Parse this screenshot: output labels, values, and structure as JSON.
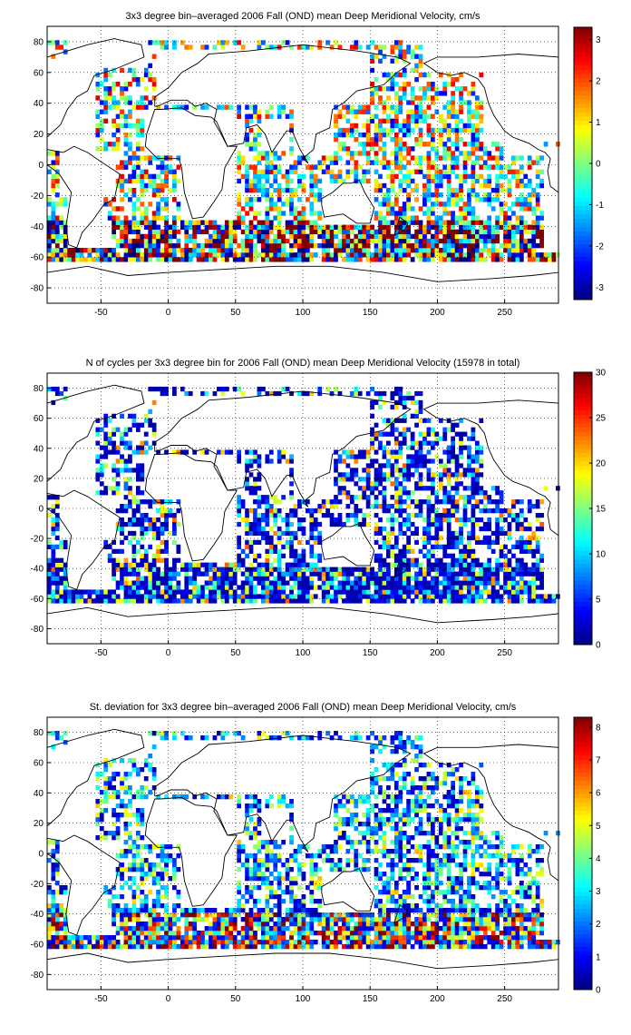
{
  "chart_data": [
    {
      "type": "heatmap",
      "title": "3x3 degree bin–averaged 2006 Fall (OND) mean Deep Meridional Velocity, cm/s",
      "xlabel": "",
      "ylabel": "",
      "xlim": [
        -90,
        290
      ],
      "ylim": [
        -90,
        90
      ],
      "xticks": [
        "-50",
        "0",
        "50",
        "100",
        "150",
        "200",
        "250"
      ],
      "yticks": [
        "80",
        "60",
        "40",
        "20",
        "0",
        "-20",
        "-40",
        "-60",
        "-80"
      ],
      "grid": true,
      "bin_deg": 3,
      "colorbar": {
        "colormap": "jet",
        "range": [
          -3.3,
          3.3
        ],
        "ticks": [
          "3",
          "2",
          "1",
          "0",
          "-1",
          "-2",
          "-3"
        ]
      },
      "dominant_values": "mixed positive and negative, extremes (±3) concentrated in the Southern Ocean band near -40 to -60"
    },
    {
      "type": "heatmap",
      "title": "N of cycles per 3x3 degree bin for 2006 Fall (OND) mean Deep Meridional Velocity (15978 in total)",
      "xlabel": "",
      "ylabel": "",
      "xlim": [
        -90,
        290
      ],
      "ylim": [
        -90,
        90
      ],
      "xticks": [
        "-50",
        "0",
        "50",
        "100",
        "150",
        "200",
        "250"
      ],
      "yticks": [
        "80",
        "60",
        "40",
        "20",
        "0",
        "-20",
        "-40",
        "-60",
        "-80"
      ],
      "grid": true,
      "bin_deg": 3,
      "total_cycles": 15978,
      "colorbar": {
        "colormap": "jet",
        "range": [
          0,
          30
        ],
        "ticks": [
          "30",
          "25",
          "20",
          "15",
          "10",
          "5",
          "0"
        ]
      },
      "dominant_values": "mostly 1-5 cycles per bin, scattered bins of 10-20"
    },
    {
      "type": "heatmap",
      "title": "St. deviation for 3x3 degree bin–averaged 2006 Fall (OND) mean Deep Meridional Velocity, cm/s",
      "xlabel": "",
      "ylabel": "",
      "xlim": [
        -90,
        290
      ],
      "ylim": [
        -90,
        90
      ],
      "xticks": [
        "-50",
        "0",
        "50",
        "100",
        "150",
        "200",
        "250"
      ],
      "yticks": [
        "80",
        "60",
        "40",
        "20",
        "0",
        "-20",
        "-40",
        "-60",
        "-80"
      ],
      "grid": true,
      "bin_deg": 3,
      "colorbar": {
        "colormap": "jet",
        "range": [
          0,
          8.3
        ],
        "ticks": [
          "8",
          "7",
          "6",
          "5",
          "4",
          "3",
          "2",
          "1",
          "0"
        ]
      },
      "dominant_values": "mostly 0-2 cm/s, high values (6-8) along the Southern Ocean band"
    }
  ]
}
